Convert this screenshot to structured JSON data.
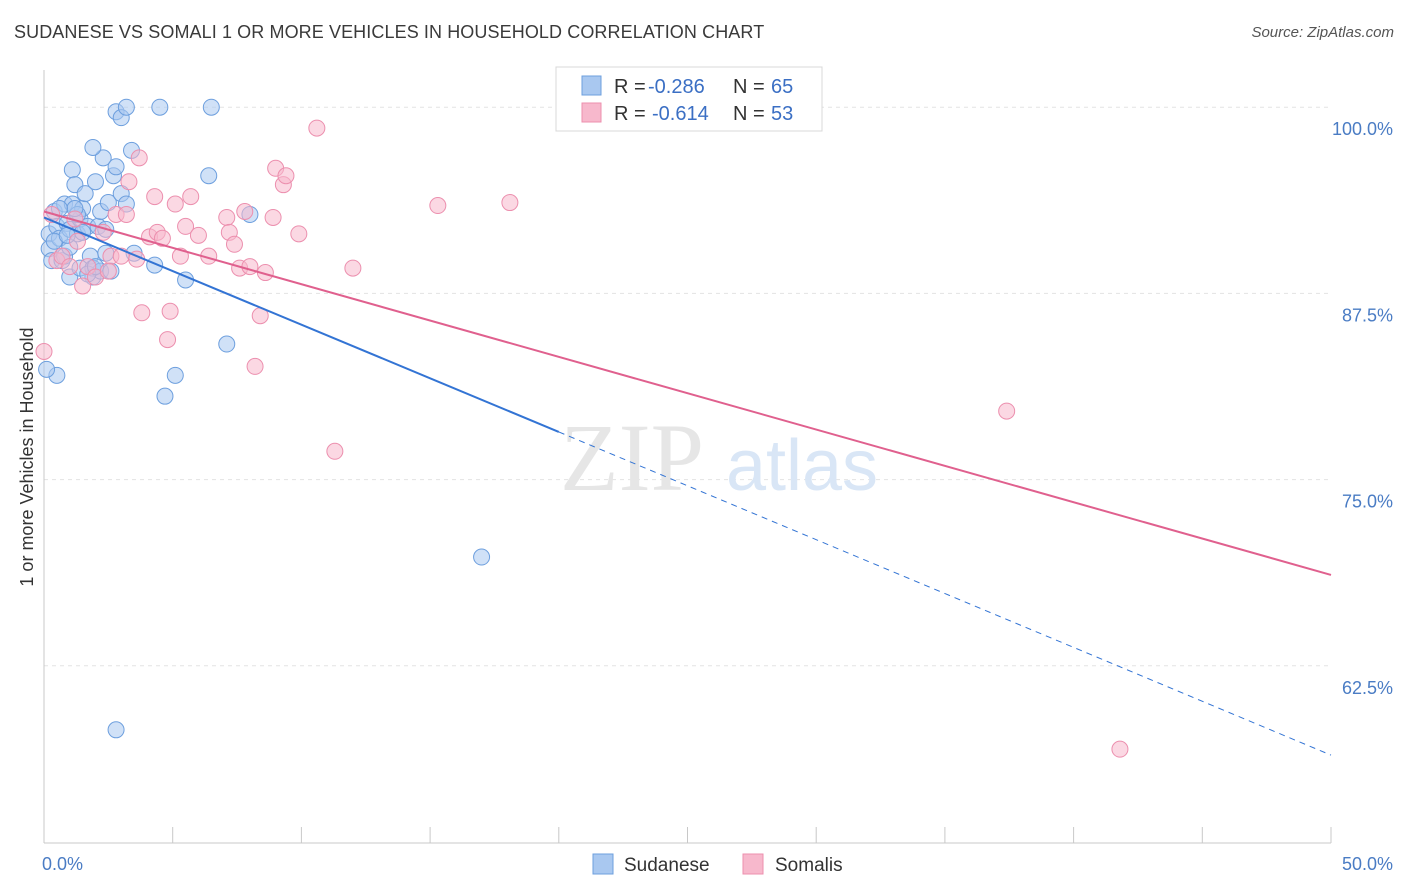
{
  "title": "SUDANESE VS SOMALI 1 OR MORE VEHICLES IN HOUSEHOLD CORRELATION CHART",
  "source": "Source: ZipAtlas.com",
  "watermark": {
    "zip": "ZIP",
    "atlas": "atlas"
  },
  "legend": {
    "rows": [
      {
        "r_label": "R =",
        "r_value": "-0.286",
        "n_label": "N =",
        "n_value": "65"
      },
      {
        "r_label": "R =",
        "r_value": "-0.614",
        "n_label": "N =",
        "n_value": "53"
      }
    ]
  },
  "colors": {
    "sudanese_fill": "#a9c8f0",
    "sudanese_stroke": "#6d9fde",
    "sudanese_line": "#3374d4",
    "somalis_fill": "#f7b8cc",
    "somalis_stroke": "#ec8fae",
    "somalis_line": "#e0608e",
    "grid": "#e3e3e3",
    "axis_label": "#4a7cc4"
  },
  "chart_data": {
    "type": "scatter",
    "xlabel": "",
    "ylabel": "1 or more Vehicles in Household",
    "xlim": [
      0,
      50
    ],
    "ylim": [
      50.6,
      102.5
    ],
    "x_tick_labels": [
      {
        "value": 0,
        "label": "0.0%"
      },
      {
        "value": 50,
        "label": "50.0%"
      }
    ],
    "y_ticks": [
      {
        "value": 100,
        "label": "100.0%"
      },
      {
        "value": 87.5,
        "label": "87.5%"
      },
      {
        "value": 75,
        "label": "75.0%"
      },
      {
        "value": 62.5,
        "label": "62.5%"
      }
    ],
    "grid": true,
    "legend_position": "top-center",
    "series": [
      {
        "name": "Sudanese",
        "r": -0.286,
        "n": 65,
        "trend": {
          "x0": 0,
          "y0": 92.6,
          "x1": 20,
          "y1": 78.2,
          "dashed_to_x": 50,
          "dashed_to_y": 56.5
        },
        "points": [
          [
            0.2,
            91.5
          ],
          [
            0.2,
            90.5
          ],
          [
            0.3,
            89.7
          ],
          [
            0.4,
            93.0
          ],
          [
            0.5,
            92.0
          ],
          [
            0.6,
            91.2
          ],
          [
            0.7,
            89.7
          ],
          [
            0.8,
            93.5
          ],
          [
            0.9,
            92.2
          ],
          [
            1.0,
            88.6
          ],
          [
            1.0,
            91.8
          ],
          [
            1.1,
            93.5
          ],
          [
            1.1,
            95.8
          ],
          [
            1.2,
            94.8
          ],
          [
            1.3,
            91.5
          ],
          [
            1.4,
            92.5
          ],
          [
            1.4,
            89.2
          ],
          [
            1.5,
            93.2
          ],
          [
            1.6,
            94.2
          ],
          [
            1.7,
            92.0
          ],
          [
            1.8,
            90.0
          ],
          [
            1.9,
            88.6
          ],
          [
            1.9,
            89.2
          ],
          [
            2.0,
            95.0
          ],
          [
            2.1,
            92.0
          ],
          [
            2.2,
            89.0
          ],
          [
            2.2,
            93.0
          ],
          [
            2.3,
            96.6
          ],
          [
            2.4,
            91.8
          ],
          [
            2.5,
            93.6
          ],
          [
            2.6,
            89.0
          ],
          [
            2.7,
            95.4
          ],
          [
            2.8,
            99.7
          ],
          [
            2.8,
            96.0
          ],
          [
            3.0,
            94.2
          ],
          [
            3.0,
            99.3
          ],
          [
            3.2,
            100.0
          ],
          [
            3.2,
            93.5
          ],
          [
            3.4,
            97.1
          ],
          [
            3.5,
            90.2
          ],
          [
            4.3,
            89.4
          ],
          [
            4.5,
            100.0
          ],
          [
            4.7,
            80.6
          ],
          [
            5.1,
            82.0
          ],
          [
            5.5,
            88.4
          ],
          [
            6.4,
            95.4
          ],
          [
            6.5,
            100.0
          ],
          [
            7.1,
            84.1
          ],
          [
            8.0,
            92.8
          ],
          [
            0.5,
            82.0
          ],
          [
            0.1,
            82.4
          ],
          [
            2.8,
            58.2
          ],
          [
            17.0,
            69.8
          ],
          [
            0.8,
            90.0
          ],
          [
            1.3,
            92.8
          ],
          [
            1.7,
            88.8
          ],
          [
            1.9,
            97.3
          ],
          [
            0.4,
            91.0
          ],
          [
            1.2,
            93.2
          ],
          [
            2.0,
            89.3
          ],
          [
            0.6,
            93.2
          ],
          [
            1.5,
            91.6
          ],
          [
            2.4,
            90.2
          ],
          [
            1.0,
            90.6
          ],
          [
            0.9,
            91.4
          ]
        ]
      },
      {
        "name": "Somalis",
        "r": -0.614,
        "n": 53,
        "trend": {
          "x0": 0,
          "y0": 93.0,
          "x1": 50,
          "y1": 68.6
        },
        "points": [
          [
            0.0,
            83.6
          ],
          [
            0.3,
            92.8
          ],
          [
            0.5,
            89.7
          ],
          [
            0.7,
            90.0
          ],
          [
            1.0,
            89.3
          ],
          [
            1.2,
            92.5
          ],
          [
            1.3,
            91.0
          ],
          [
            1.5,
            88.0
          ],
          [
            1.7,
            89.3
          ],
          [
            2.0,
            88.6
          ],
          [
            2.3,
            91.6
          ],
          [
            2.6,
            90.0
          ],
          [
            2.8,
            92.8
          ],
          [
            3.0,
            90.0
          ],
          [
            3.2,
            92.8
          ],
          [
            3.3,
            95.0
          ],
          [
            3.6,
            89.8
          ],
          [
            3.7,
            96.6
          ],
          [
            3.8,
            86.2
          ],
          [
            4.1,
            91.3
          ],
          [
            4.3,
            94.0
          ],
          [
            4.4,
            91.6
          ],
          [
            4.6,
            91.2
          ],
          [
            4.8,
            84.4
          ],
          [
            4.9,
            86.3
          ],
          [
            5.1,
            93.5
          ],
          [
            5.3,
            90.0
          ],
          [
            5.5,
            92.0
          ],
          [
            5.7,
            94.0
          ],
          [
            6.0,
            91.4
          ],
          [
            6.4,
            90.0
          ],
          [
            7.1,
            92.6
          ],
          [
            7.2,
            91.6
          ],
          [
            7.4,
            90.8
          ],
          [
            7.6,
            89.2
          ],
          [
            7.8,
            93.0
          ],
          [
            8.0,
            89.3
          ],
          [
            8.2,
            82.6
          ],
          [
            8.4,
            86.0
          ],
          [
            8.6,
            88.9
          ],
          [
            8.9,
            92.6
          ],
          [
            9.0,
            95.9
          ],
          [
            9.3,
            94.8
          ],
          [
            9.4,
            95.4
          ],
          [
            9.9,
            91.5
          ],
          [
            10.6,
            98.6
          ],
          [
            11.3,
            76.9
          ],
          [
            12.0,
            89.2
          ],
          [
            15.3,
            93.4
          ],
          [
            18.1,
            93.6
          ],
          [
            37.4,
            79.6
          ],
          [
            41.8,
            56.9
          ],
          [
            2.5,
            89.0
          ]
        ]
      }
    ]
  }
}
